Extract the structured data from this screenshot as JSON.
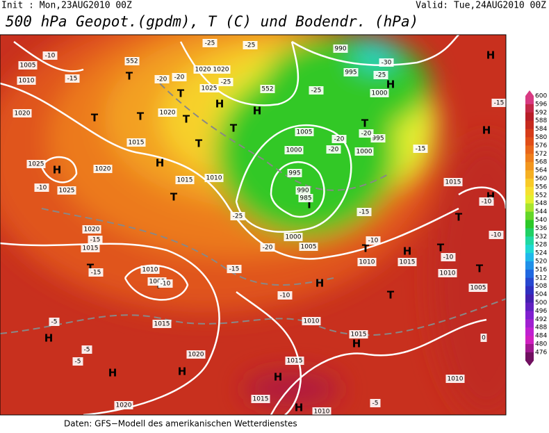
{
  "header": {
    "init": "Init : Mon,23AUG2010 00Z",
    "valid": "Valid: Tue,24AUG2010 00Z",
    "title": "500 hPa Geopot.(gpdm), T (C) und Bodendr. (hPa)"
  },
  "footer": "Daten: GFS−Modell des amerikanischen Wetterdienstes",
  "colorbar": {
    "items": [
      {
        "value": 600,
        "color": "#d83a82"
      },
      {
        "value": 596,
        "color": "#c42848"
      },
      {
        "value": 592,
        "color": "#b81e28"
      },
      {
        "value": 588,
        "color": "#c62a1e"
      },
      {
        "value": 584,
        "color": "#d63c1a"
      },
      {
        "value": 580,
        "color": "#e04e18"
      },
      {
        "value": 576,
        "color": "#e8661a"
      },
      {
        "value": 572,
        "color": "#ee7e1c"
      },
      {
        "value": 568,
        "color": "#f2961e"
      },
      {
        "value": 564,
        "color": "#f5b022"
      },
      {
        "value": 560,
        "color": "#f8ca28"
      },
      {
        "value": 556,
        "color": "#f6e030"
      },
      {
        "value": 552,
        "color": "#e2f030"
      },
      {
        "value": 548,
        "color": "#a8e42e"
      },
      {
        "value": 544,
        "color": "#64d628"
      },
      {
        "value": 540,
        "color": "#2cc828"
      },
      {
        "value": 536,
        "color": "#20d064"
      },
      {
        "value": 532,
        "color": "#20d8a2"
      },
      {
        "value": 528,
        "color": "#20d8d2"
      },
      {
        "value": 524,
        "color": "#20b8ea"
      },
      {
        "value": 520,
        "color": "#2090e8"
      },
      {
        "value": 516,
        "color": "#2068e0"
      },
      {
        "value": 512,
        "color": "#2848d0"
      },
      {
        "value": 508,
        "color": "#3030c0"
      },
      {
        "value": 504,
        "color": "#4420b0"
      },
      {
        "value": 500,
        "color": "#6020c0"
      },
      {
        "value": 496,
        "color": "#8020d0"
      },
      {
        "value": 492,
        "color": "#a020d0"
      },
      {
        "value": 488,
        "color": "#c020d0"
      },
      {
        "value": 484,
        "color": "#d020c0"
      },
      {
        "value": 480,
        "color": "#a01890"
      },
      {
        "value": 476,
        "color": "#701060"
      }
    ]
  },
  "map": {
    "labels": [
      "H",
      "H",
      "H",
      "H",
      "H",
      "H",
      "H",
      "H",
      "H",
      "H",
      "H",
      "H",
      "H",
      "H",
      "H",
      "H",
      "T",
      "T",
      "T",
      "T",
      "T",
      "T",
      "T",
      "T",
      "T",
      "T",
      "T",
      "T",
      "T",
      "T",
      "T",
      "T",
      "T",
      "1005",
      "1010",
      "1020",
      "1015",
      "1025",
      "1020",
      "1025",
      "1015",
      "1010",
      "1020",
      "1015",
      "1010",
      "1005",
      "1015",
      "1020",
      "1015",
      "1015",
      "1020",
      "1010",
      "1015",
      "1010",
      "1015",
      "1010",
      "1005",
      "1010",
      "1015",
      "990",
      "995",
      "1000",
      "995",
      "1000",
      "1005",
      "1000",
      "995",
      "990",
      "985",
      "1000",
      "1005",
      "1025",
      "1020",
      "1020",
      "1020",
      "1010",
      "-10",
      "-15",
      "-10",
      "-15",
      "-15",
      "-10",
      "-15",
      "-10",
      "-5",
      "-5",
      "-5",
      "-20",
      "-25",
      "-25",
      "-20",
      "-25",
      "-25",
      "-25",
      "-30",
      "-20",
      "-20",
      "-20",
      "-15",
      "-15",
      "-15",
      "-20",
      "-25",
      "-10",
      "-10",
      "-10",
      "-5",
      "0",
      "-10",
      "552",
      "552"
    ]
  }
}
